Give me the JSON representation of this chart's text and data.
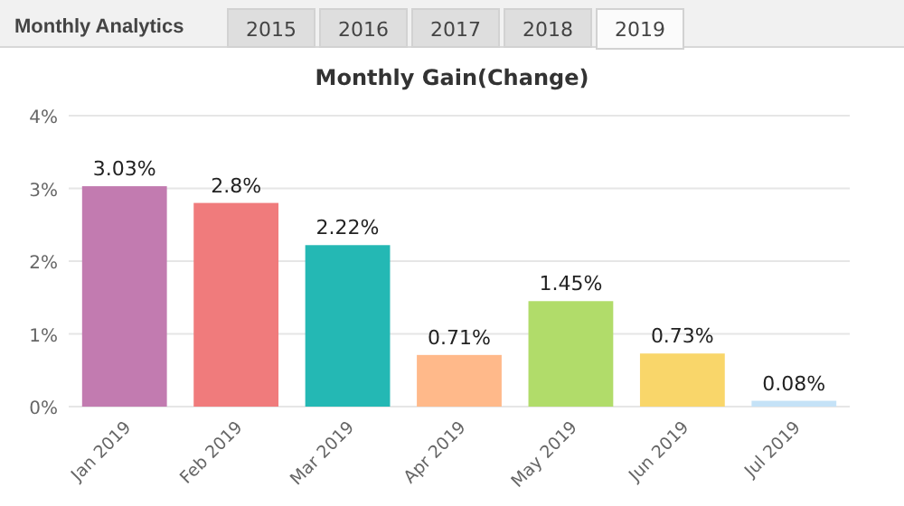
{
  "chart_data": {
    "type": "bar",
    "title": "Monthly Gain(Change)",
    "annotations": [
      "Monthly Analytics",
      "2015",
      "2016",
      "2017",
      "2018",
      "2019"
    ],
    "categories": [
      "Jan 2019",
      "Feb 2019",
      "Mar 2019",
      "Apr 2019",
      "May 2019",
      "Jun 2019",
      "Jul 2019"
    ],
    "values": [
      3.03,
      2.8,
      2.22,
      0.71,
      1.45,
      0.73,
      0.08
    ],
    "value_labels": [
      "3.03%",
      "2.8%",
      "2.22%",
      "0.71%",
      "1.45%",
      "0.73%",
      "0.08%"
    ],
    "colors": [
      "#c27bb0",
      "#f07b7c",
      "#24b8b4",
      "#ffb98a",
      "#b1dc6a",
      "#f9d66a",
      "#c5e2f7"
    ],
    "ylim": [
      0,
      4
    ],
    "yticks": [
      {
        "value": 0,
        "label": "0%"
      },
      {
        "value": 1,
        "label": "1%"
      },
      {
        "value": 2,
        "label": "2%"
      },
      {
        "value": 3,
        "label": "3%"
      },
      {
        "value": 4,
        "label": "4%"
      }
    ],
    "grid": true
  }
}
